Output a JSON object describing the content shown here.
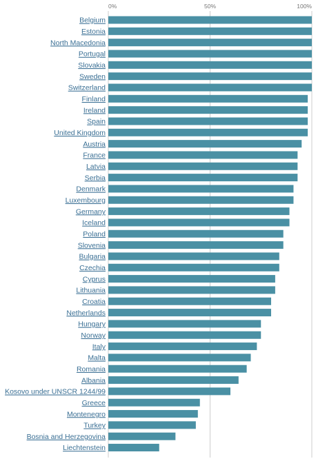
{
  "chart_data": {
    "type": "bar",
    "orientation": "horizontal",
    "title": "",
    "xlabel": "",
    "ylabel": "",
    "xlim": [
      0,
      100
    ],
    "grid": true,
    "legend": "none",
    "bar_color": "#4a90a4",
    "gridline_color": "#cccccc",
    "label_color": "#3a6f94",
    "x_ticks": [
      {
        "value": 0,
        "label": "0%"
      },
      {
        "value": 50,
        "label": "50%"
      },
      {
        "value": 100,
        "label": "100%"
      }
    ],
    "categories": [
      "Belgium",
      "Estonia",
      "North Macedonia",
      "Portugal",
      "Slovakia",
      "Sweden",
      "Switzerland",
      "Finland",
      "Ireland",
      "Spain",
      "United Kingdom",
      "Austria",
      "France",
      "Latvia",
      "Serbia",
      "Denmark",
      "Luxembourg",
      "Germany",
      "Iceland",
      "Poland",
      "Slovenia",
      "Bulgaria",
      "Czechia",
      "Cyprus",
      "Lithuania",
      "Croatia",
      "Netherlands",
      "Hungary",
      "Norway",
      "Italy",
      "Malta",
      "Romania",
      "Albania",
      "Kosovo under UNSCR 1244/99",
      "Greece",
      "Montenegro",
      "Turkey",
      "Bosnia and Herzegovina",
      "Liechtenstein"
    ],
    "values": [
      100,
      100,
      100,
      100,
      100,
      100,
      100,
      98,
      98,
      98,
      98,
      95,
      93,
      93,
      93,
      91,
      91,
      89,
      89,
      86,
      86,
      84,
      84,
      82,
      82,
      80,
      80,
      75,
      75,
      73,
      70,
      68,
      64,
      60,
      45,
      44,
      43,
      33,
      25
    ]
  }
}
